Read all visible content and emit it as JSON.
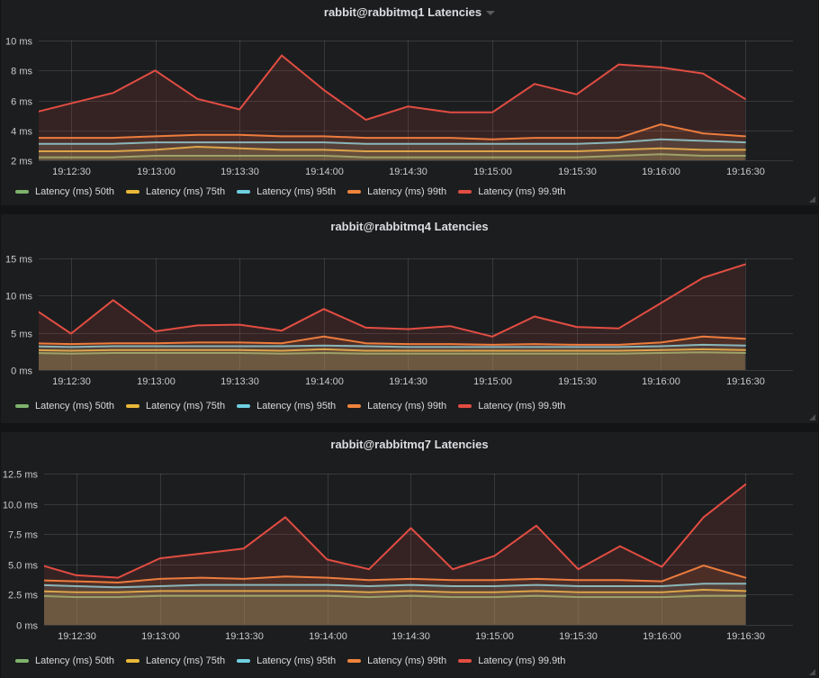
{
  "colors": {
    "green": "#7EB26D",
    "yellow": "#EAB839",
    "blue": "#6ED0E0",
    "orange": "#EF843C",
    "red": "#E24D42",
    "grid": "rgba(255,255,255,0.12)",
    "axis_text": "#c9cacc",
    "panel_bg": "#1c1d1f",
    "page_bg": "#131416"
  },
  "chart_data": [
    {
      "type": "area",
      "title": "rabbit@rabbitmq1 Latencies",
      "has_menu_caret": true,
      "unit": "ms",
      "grid": true,
      "legend_position": "bottom-left",
      "x_unit": "seconds offset from 19:12:15",
      "x_domain": [
        3.5,
        272
      ],
      "x": [
        0,
        15,
        30,
        45,
        60,
        75,
        90,
        105,
        120,
        135,
        150,
        165,
        180,
        195,
        210,
        225,
        240,
        255
      ],
      "x_ticks": [
        {
          "t": 15,
          "label": "19:12:30"
        },
        {
          "t": 45,
          "label": "19:13:00"
        },
        {
          "t": 75,
          "label": "19:13:30"
        },
        {
          "t": 105,
          "label": "19:14:00"
        },
        {
          "t": 135,
          "label": "19:14:30"
        },
        {
          "t": 165,
          "label": "19:15:00"
        },
        {
          "t": 195,
          "label": "19:15:30"
        },
        {
          "t": 225,
          "label": "19:16:00"
        },
        {
          "t": 255,
          "label": "19:16:30"
        }
      ],
      "ylim": [
        2,
        10
      ],
      "y_ticks": [
        {
          "v": 2,
          "label": "2 ms"
        },
        {
          "v": 4,
          "label": "4 ms"
        },
        {
          "v": 6,
          "label": "6 ms"
        },
        {
          "v": 8,
          "label": "8 ms"
        },
        {
          "v": 10,
          "label": "10 ms"
        }
      ],
      "series": [
        {
          "name": "Latency (ms) 50th",
          "color": "green",
          "values": [
            2.2,
            2.2,
            2.2,
            2.3,
            2.3,
            2.3,
            2.3,
            2.3,
            2.2,
            2.2,
            2.2,
            2.2,
            2.2,
            2.2,
            2.3,
            2.4,
            2.3,
            2.3
          ]
        },
        {
          "name": "Latency (ms) 75th",
          "color": "yellow",
          "values": [
            2.6,
            2.6,
            2.6,
            2.7,
            2.9,
            2.8,
            2.7,
            2.7,
            2.6,
            2.6,
            2.6,
            2.6,
            2.6,
            2.6,
            2.7,
            2.8,
            2.7,
            2.7
          ]
        },
        {
          "name": "Latency (ms) 95th",
          "color": "blue",
          "values": [
            3.1,
            3.1,
            3.1,
            3.2,
            3.2,
            3.2,
            3.2,
            3.2,
            3.1,
            3.1,
            3.1,
            3.1,
            3.1,
            3.1,
            3.2,
            3.4,
            3.3,
            3.2
          ]
        },
        {
          "name": "Latency (ms) 99th",
          "color": "orange",
          "values": [
            3.5,
            3.5,
            3.5,
            3.6,
            3.7,
            3.7,
            3.6,
            3.6,
            3.5,
            3.5,
            3.5,
            3.4,
            3.5,
            3.5,
            3.5,
            4.4,
            3.8,
            3.6
          ]
        },
        {
          "name": "Latency (ms) 99.9th",
          "color": "red",
          "values": [
            5.1,
            5.8,
            6.5,
            8.0,
            6.1,
            5.4,
            9.0,
            6.7,
            4.7,
            5.6,
            5.2,
            5.2,
            7.1,
            6.4,
            8.4,
            8.2,
            7.8,
            6.1
          ]
        }
      ]
    },
    {
      "type": "area",
      "title": "rabbit@rabbitmq4 Latencies",
      "has_menu_caret": false,
      "unit": "ms",
      "grid": true,
      "legend_position": "bottom-left",
      "x_unit": "seconds offset from 19:12:15",
      "x_domain": [
        3.5,
        272
      ],
      "x": [
        0,
        15,
        30,
        45,
        60,
        75,
        90,
        105,
        120,
        135,
        150,
        165,
        180,
        195,
        210,
        225,
        240,
        255
      ],
      "x_ticks": [
        {
          "t": 15,
          "label": "19:12:30"
        },
        {
          "t": 45,
          "label": "19:13:00"
        },
        {
          "t": 75,
          "label": "19:13:30"
        },
        {
          "t": 105,
          "label": "19:14:00"
        },
        {
          "t": 135,
          "label": "19:14:30"
        },
        {
          "t": 165,
          "label": "19:15:00"
        },
        {
          "t": 195,
          "label": "19:15:30"
        },
        {
          "t": 225,
          "label": "19:16:00"
        },
        {
          "t": 255,
          "label": "19:16:30"
        }
      ],
      "ylim": [
        0,
        15
      ],
      "y_ticks": [
        {
          "v": 0,
          "label": "0 ms"
        },
        {
          "v": 5,
          "label": "5 ms"
        },
        {
          "v": 10,
          "label": "10 ms"
        },
        {
          "v": 15,
          "label": "15 ms"
        }
      ],
      "series": [
        {
          "name": "Latency (ms) 50th",
          "color": "green",
          "values": [
            2.3,
            2.2,
            2.3,
            2.3,
            2.3,
            2.3,
            2.2,
            2.3,
            2.2,
            2.2,
            2.2,
            2.2,
            2.2,
            2.2,
            2.2,
            2.3,
            2.4,
            2.3
          ]
        },
        {
          "name": "Latency (ms) 75th",
          "color": "yellow",
          "values": [
            2.7,
            2.6,
            2.7,
            2.7,
            2.7,
            2.7,
            2.6,
            2.8,
            2.6,
            2.6,
            2.6,
            2.6,
            2.6,
            2.6,
            2.6,
            2.7,
            2.8,
            2.7
          ]
        },
        {
          "name": "Latency (ms) 95th",
          "color": "blue",
          "values": [
            3.2,
            3.1,
            3.2,
            3.2,
            3.2,
            3.2,
            3.2,
            3.3,
            3.2,
            3.1,
            3.1,
            3.1,
            3.1,
            3.1,
            3.1,
            3.2,
            3.4,
            3.3
          ]
        },
        {
          "name": "Latency (ms) 99th",
          "color": "orange",
          "values": [
            3.6,
            3.5,
            3.6,
            3.6,
            3.7,
            3.7,
            3.6,
            4.5,
            3.6,
            3.5,
            3.5,
            3.4,
            3.5,
            3.4,
            3.4,
            3.7,
            4.5,
            4.2
          ]
        },
        {
          "name": "Latency (ms) 99.9th",
          "color": "red",
          "values": [
            8.7,
            4.9,
            9.4,
            5.2,
            6.0,
            6.1,
            5.3,
            8.2,
            5.7,
            5.5,
            5.9,
            4.5,
            7.2,
            5.8,
            5.6,
            9.0,
            12.4,
            14.2
          ]
        }
      ]
    },
    {
      "type": "area",
      "title": "rabbit@rabbitmq7 Latencies",
      "has_menu_caret": false,
      "unit": "ms",
      "grid": true,
      "legend_position": "bottom-left",
      "x_unit": "seconds offset from 19:12:15",
      "x_domain": [
        3.5,
        272
      ],
      "x": [
        0,
        15,
        30,
        45,
        60,
        75,
        90,
        105,
        120,
        135,
        150,
        165,
        180,
        195,
        210,
        225,
        240,
        255
      ],
      "x_ticks": [
        {
          "t": 15,
          "label": "19:12:30"
        },
        {
          "t": 45,
          "label": "19:13:00"
        },
        {
          "t": 75,
          "label": "19:13:30"
        },
        {
          "t": 105,
          "label": "19:14:00"
        },
        {
          "t": 135,
          "label": "19:14:30"
        },
        {
          "t": 165,
          "label": "19:15:00"
        },
        {
          "t": 195,
          "label": "19:15:30"
        },
        {
          "t": 225,
          "label": "19:16:00"
        },
        {
          "t": 255,
          "label": "19:16:30"
        }
      ],
      "ylim": [
        0,
        12.5
      ],
      "y_ticks": [
        {
          "v": 0,
          "label": "0 ms"
        },
        {
          "v": 2.5,
          "label": "2.5 ms"
        },
        {
          "v": 5,
          "label": "5.0 ms"
        },
        {
          "v": 7.5,
          "label": "7.5 ms"
        },
        {
          "v": 10,
          "label": "10.0 ms"
        },
        {
          "v": 12.5,
          "label": "12.5 ms"
        }
      ],
      "series": [
        {
          "name": "Latency (ms) 50th",
          "color": "green",
          "values": [
            2.4,
            2.3,
            2.3,
            2.4,
            2.4,
            2.4,
            2.4,
            2.4,
            2.3,
            2.4,
            2.3,
            2.3,
            2.4,
            2.3,
            2.3,
            2.3,
            2.4,
            2.4
          ]
        },
        {
          "name": "Latency (ms) 75th",
          "color": "yellow",
          "values": [
            2.8,
            2.7,
            2.7,
            2.8,
            2.8,
            2.8,
            2.8,
            2.8,
            2.7,
            2.8,
            2.7,
            2.7,
            2.8,
            2.7,
            2.7,
            2.7,
            2.9,
            2.8
          ]
        },
        {
          "name": "Latency (ms) 95th",
          "color": "blue",
          "values": [
            3.3,
            3.2,
            3.1,
            3.2,
            3.3,
            3.3,
            3.3,
            3.3,
            3.2,
            3.3,
            3.2,
            3.2,
            3.3,
            3.2,
            3.2,
            3.2,
            3.4,
            3.4
          ]
        },
        {
          "name": "Latency (ms) 99th",
          "color": "orange",
          "values": [
            3.7,
            3.6,
            3.5,
            3.8,
            3.9,
            3.8,
            4.0,
            3.9,
            3.7,
            3.8,
            3.7,
            3.7,
            3.8,
            3.7,
            3.7,
            3.6,
            4.9,
            3.9
          ]
        },
        {
          "name": "Latency (ms) 99.9th",
          "color": "red",
          "values": [
            5.1,
            4.1,
            3.9,
            5.5,
            5.9,
            6.3,
            8.9,
            5.4,
            4.6,
            8.0,
            4.6,
            5.7,
            8.2,
            4.6,
            6.5,
            4.8,
            8.9,
            11.6
          ]
        }
      ]
    }
  ]
}
